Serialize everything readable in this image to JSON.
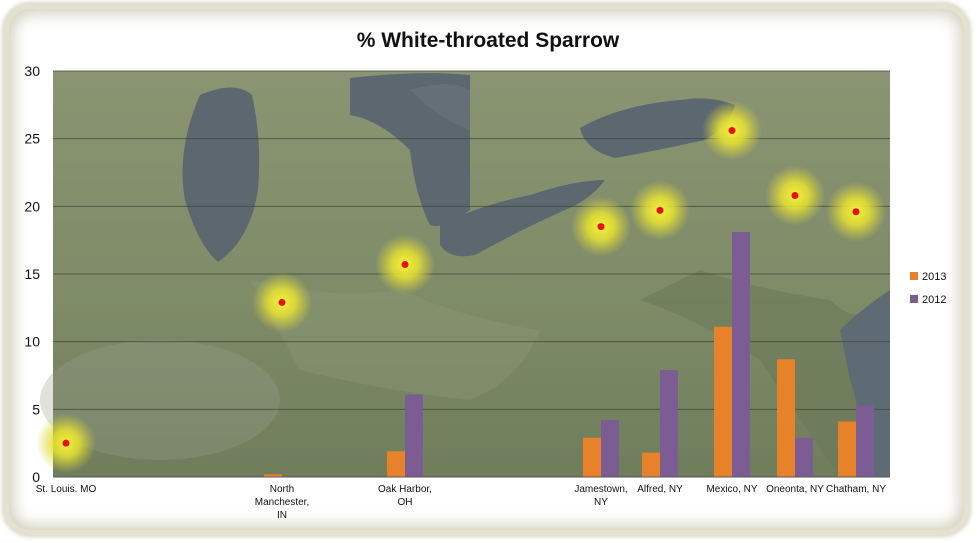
{
  "chart_data": {
    "type": "bar",
    "title": "% White-throated Sparrow",
    "xlabel": "",
    "ylabel": "",
    "ylim": [
      0,
      30
    ],
    "yticks": [
      0,
      5,
      10,
      15,
      20,
      25,
      30
    ],
    "grid": true,
    "legend_position": "right",
    "background": "satellite map of the Great Lakes region",
    "categories": [
      [
        "St. Louis. MO"
      ],
      [
        "North",
        "Manchester,",
        "IN"
      ],
      [
        "Oak Harbor,",
        "OH"
      ],
      [
        "Jamestown,",
        "NY"
      ],
      [
        "Alfred, NY"
      ],
      [
        "Mexico, NY"
      ],
      [
        "Oneonta, NY"
      ],
      [
        "Chatham, NY"
      ]
    ],
    "series": [
      {
        "name": "2013",
        "color": "#e8822a",
        "values": [
          0,
          0.2,
          1.9,
          2.9,
          1.8,
          11.1,
          8.7,
          4.1
        ]
      },
      {
        "name": "2012",
        "color": "#7b5c93",
        "values": [
          0,
          0,
          6.1,
          4.2,
          7.9,
          18.1,
          2.9,
          5.3
        ]
      }
    ],
    "location_markers": [
      {
        "site": "St. Louis. MO",
        "y": 2.5
      },
      {
        "site": "North Manchester, IN",
        "y": 12.9
      },
      {
        "site": "Oak Harbor, OH",
        "y": 15.7
      },
      {
        "site": "Jamestown, NY",
        "y": 18.5
      },
      {
        "site": "Alfred, NY",
        "y": 19.7
      },
      {
        "site": "Mexico, NY",
        "y": 25.6
      },
      {
        "site": "Oneonta, NY",
        "y": 20.8
      },
      {
        "site": "Chatham, NY",
        "y": 19.6
      }
    ]
  }
}
